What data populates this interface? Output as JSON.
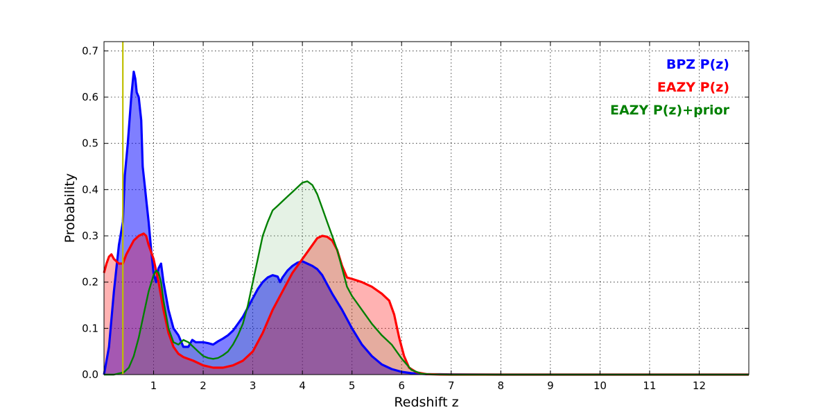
{
  "chart_data": {
    "type": "area",
    "xlabel": "Redshift z",
    "ylabel": "Probability",
    "xlim": [
      0,
      13
    ],
    "ylim": [
      0,
      0.72
    ],
    "xticks": [
      1,
      2,
      3,
      4,
      5,
      6,
      7,
      8,
      9,
      10,
      11,
      12
    ],
    "xtick_labels": [
      "1",
      "2",
      "3",
      "4",
      "5",
      "6",
      "7",
      "8",
      "9",
      "10",
      "11",
      "12"
    ],
    "yticks": [
      0.0,
      0.1,
      0.2,
      0.3,
      0.4,
      0.5,
      0.6,
      0.7
    ],
    "ytick_labels": [
      "0.0",
      "0.1",
      "0.2",
      "0.3",
      "0.4",
      "0.5",
      "0.6",
      "0.7"
    ],
    "grid": true,
    "legend_position": "top-right",
    "reference_line": {
      "x": 0.38,
      "color": "#bfbf00"
    },
    "series": [
      {
        "name": "BPZ P(z)",
        "color": "#0000ff",
        "fill": "#0000ff",
        "fill_opacity": 0.5,
        "x": [
          0,
          0.1,
          0.2,
          0.3,
          0.38,
          0.42,
          0.48,
          0.55,
          0.6,
          0.63,
          0.66,
          0.7,
          0.75,
          0.78,
          0.82,
          0.86,
          0.9,
          0.95,
          1.0,
          1.05,
          1.1,
          1.15,
          1.2,
          1.25,
          1.3,
          1.4,
          1.5,
          1.6,
          1.7,
          1.78,
          1.85,
          1.9,
          2.0,
          2.1,
          2.2,
          2.3,
          2.4,
          2.5,
          2.6,
          2.7,
          2.8,
          2.9,
          3.0,
          3.1,
          3.2,
          3.3,
          3.4,
          3.5,
          3.55,
          3.6,
          3.7,
          3.8,
          3.9,
          4.0,
          4.1,
          4.2,
          4.3,
          4.4,
          4.5,
          4.6,
          4.8,
          5.0,
          5.2,
          5.4,
          5.6,
          5.8,
          6.0,
          6.2,
          6.5,
          7,
          8,
          9,
          10,
          11,
          12,
          13
        ],
        "y": [
          0.0,
          0.06,
          0.18,
          0.28,
          0.33,
          0.43,
          0.5,
          0.6,
          0.655,
          0.64,
          0.61,
          0.6,
          0.55,
          0.45,
          0.41,
          0.37,
          0.33,
          0.27,
          0.22,
          0.2,
          0.23,
          0.24,
          0.2,
          0.17,
          0.14,
          0.1,
          0.085,
          0.06,
          0.06,
          0.075,
          0.07,
          0.07,
          0.07,
          0.068,
          0.065,
          0.072,
          0.078,
          0.085,
          0.095,
          0.11,
          0.125,
          0.145,
          0.165,
          0.185,
          0.2,
          0.21,
          0.215,
          0.212,
          0.2,
          0.21,
          0.225,
          0.235,
          0.242,
          0.245,
          0.24,
          0.235,
          0.228,
          0.215,
          0.195,
          0.175,
          0.14,
          0.1,
          0.065,
          0.04,
          0.022,
          0.012,
          0.006,
          0.003,
          0.001,
          0.0005,
          0,
          0,
          0,
          0,
          0,
          0
        ]
      },
      {
        "name": "EAZY P(z)",
        "color": "#ff0000",
        "fill": "#ff0000",
        "fill_opacity": 0.3,
        "x": [
          0,
          0.05,
          0.1,
          0.15,
          0.2,
          0.3,
          0.38,
          0.45,
          0.5,
          0.6,
          0.7,
          0.8,
          0.85,
          0.9,
          1.0,
          1.1,
          1.2,
          1.3,
          1.4,
          1.5,
          1.6,
          1.8,
          2.0,
          2.2,
          2.4,
          2.6,
          2.8,
          3.0,
          3.2,
          3.4,
          3.6,
          3.8,
          4.0,
          4.2,
          4.3,
          4.4,
          4.5,
          4.6,
          4.7,
          4.8,
          4.9,
          5.0,
          5.2,
          5.4,
          5.6,
          5.75,
          5.85,
          5.95,
          6.05,
          6.15,
          6.3,
          6.5,
          6.8,
          7,
          8,
          9,
          10,
          11,
          12,
          13
        ],
        "y": [
          0.22,
          0.24,
          0.255,
          0.26,
          0.25,
          0.24,
          0.24,
          0.26,
          0.27,
          0.29,
          0.3,
          0.305,
          0.3,
          0.28,
          0.25,
          0.2,
          0.14,
          0.09,
          0.06,
          0.045,
          0.038,
          0.03,
          0.02,
          0.015,
          0.015,
          0.02,
          0.03,
          0.05,
          0.09,
          0.14,
          0.18,
          0.22,
          0.25,
          0.28,
          0.295,
          0.3,
          0.298,
          0.29,
          0.27,
          0.235,
          0.21,
          0.207,
          0.2,
          0.19,
          0.175,
          0.16,
          0.13,
          0.08,
          0.04,
          0.015,
          0.005,
          0.001,
          0.0002,
          0,
          0,
          0,
          0,
          0,
          0,
          0
        ]
      },
      {
        "name": "EAZY P(z)+prior",
        "color": "#008000",
        "fill": "#008000",
        "fill_opacity": 0.1,
        "x": [
          0,
          0.2,
          0.4,
          0.5,
          0.6,
          0.7,
          0.8,
          0.9,
          1.0,
          1.05,
          1.1,
          1.15,
          1.2,
          1.3,
          1.4,
          1.5,
          1.6,
          1.7,
          1.8,
          1.9,
          2.0,
          2.1,
          2.2,
          2.3,
          2.4,
          2.5,
          2.6,
          2.7,
          2.8,
          2.9,
          3.0,
          3.1,
          3.2,
          3.3,
          3.4,
          3.5,
          3.6,
          3.7,
          3.8,
          3.9,
          4.0,
          4.1,
          4.2,
          4.3,
          4.4,
          4.5,
          4.6,
          4.7,
          4.8,
          4.9,
          5.0,
          5.2,
          5.4,
          5.6,
          5.8,
          6.0,
          6.2,
          6.4,
          6.6,
          7,
          8,
          9,
          10,
          11,
          12,
          13
        ],
        "y": [
          0,
          0.0,
          0.005,
          0.015,
          0.04,
          0.08,
          0.13,
          0.18,
          0.215,
          0.225,
          0.22,
          0.2,
          0.16,
          0.1,
          0.07,
          0.065,
          0.075,
          0.07,
          0.06,
          0.05,
          0.04,
          0.036,
          0.034,
          0.036,
          0.042,
          0.05,
          0.065,
          0.085,
          0.11,
          0.15,
          0.2,
          0.25,
          0.3,
          0.33,
          0.355,
          0.365,
          0.375,
          0.385,
          0.395,
          0.405,
          0.415,
          0.418,
          0.41,
          0.39,
          0.36,
          0.33,
          0.3,
          0.27,
          0.23,
          0.19,
          0.17,
          0.14,
          0.11,
          0.085,
          0.065,
          0.035,
          0.01,
          0.002,
          0.0005,
          0,
          0,
          0,
          0,
          0,
          0,
          0
        ]
      }
    ]
  }
}
